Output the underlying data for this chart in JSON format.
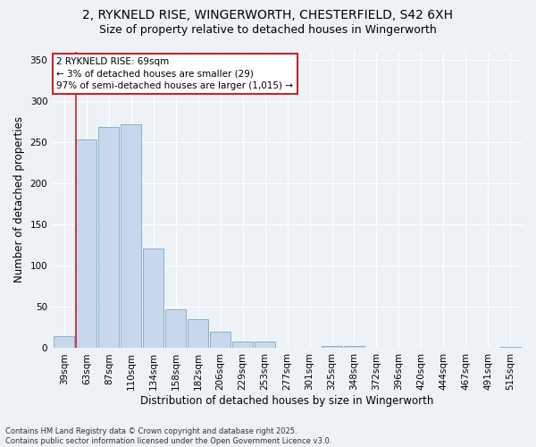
{
  "title_line1": "2, RYKNELD RISE, WINGERWORTH, CHESTERFIELD, S42 6XH",
  "title_line2": "Size of property relative to detached houses in Wingerworth",
  "xlabel": "Distribution of detached houses by size in Wingerworth",
  "ylabel": "Number of detached properties",
  "categories": [
    "39sqm",
    "63sqm",
    "87sqm",
    "110sqm",
    "134sqm",
    "158sqm",
    "182sqm",
    "206sqm",
    "229sqm",
    "253sqm",
    "277sqm",
    "301sqm",
    "325sqm",
    "348sqm",
    "372sqm",
    "396sqm",
    "420sqm",
    "444sqm",
    "467sqm",
    "491sqm",
    "515sqm"
  ],
  "values": [
    15,
    253,
    268,
    272,
    121,
    47,
    35,
    20,
    8,
    8,
    1,
    0,
    3,
    3,
    0,
    0,
    0,
    0,
    0,
    0,
    2
  ],
  "bar_color": "#c8d8ec",
  "bar_edge_color": "#7aaabb",
  "vline_color": "#cc2222",
  "annotation_text": "2 RYKNELD RISE: 69sqm\n← 3% of detached houses are smaller (29)\n97% of semi-detached houses are larger (1,015) →",
  "annotation_box_color": "#ffffff",
  "annotation_box_edge_color": "#cc2222",
  "ylim": [
    0,
    360
  ],
  "yticks": [
    0,
    50,
    100,
    150,
    200,
    250,
    300,
    350
  ],
  "footnote": "Contains HM Land Registry data © Crown copyright and database right 2025.\nContains public sector information licensed under the Open Government Licence v3.0.",
  "background_color": "#edf2f7",
  "grid_color": "#ffffff",
  "title_fontsize": 10,
  "subtitle_fontsize": 9,
  "axis_label_fontsize": 8.5,
  "tick_fontsize": 7.5,
  "annotation_fontsize": 7.5,
  "footnote_fontsize": 6
}
